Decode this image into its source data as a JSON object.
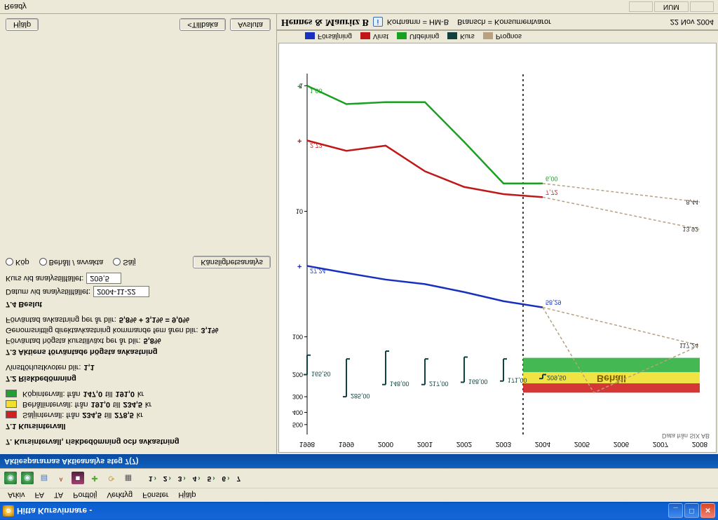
{
  "window": {
    "title": "Hitta Kursvinnare -",
    "min": "_",
    "max": "□",
    "close": "×"
  },
  "menubar": [
    "Arkiv",
    "FA",
    "TA",
    "Portfölj",
    "Verktyg",
    "Fönster",
    "Hjälp"
  ],
  "steps": [
    "1",
    "2",
    "3",
    "4",
    "5",
    "6",
    "7"
  ],
  "blue_header": "Aktiespararnas Aktieanalys steg 7(7)",
  "left": {
    "h7": "7. Kursintervall, riskbedömning och avkastning",
    "h71": "7.1 Kursintervall",
    "intervals": [
      {
        "color": "#d02020",
        "label_pre": "Säljintervall: från ",
        "v1": "234,5",
        "mid": " till ",
        "v2": "278,5",
        "unit": " kr"
      },
      {
        "color": "#f0e030",
        "label_pre": "Behållintervall: från ",
        "v1": "191,0",
        "mid": " till ",
        "v2": "234,5",
        "unit": " kr"
      },
      {
        "color": "#20a030",
        "label_pre": "Köpintervall: från ",
        "v1": "147,0",
        "mid": " till ",
        "v2": "191,0",
        "unit": " kr"
      }
    ],
    "h72": "7.2 Riskbedömning",
    "risk_line_pre": "Vinstförlustkvoten blir: ",
    "risk_val": "1,1",
    "h73": "7.3 Aktiens förväntade högsta avkastning",
    "line731_pre": "Förväntad högsta kurstillväxt per år blir: ",
    "line731_val": "5,8%",
    "line732_pre": "Genomsnittlig direktavkastning kommande fem åren blir: ",
    "line732_val": "3,1%",
    "line733_pre": "Förväntad avkastning per år blir: ",
    "line733_val": "5,8% + 3,1% = 9,0%",
    "h74": "7.4 Beslut",
    "date_label": "Datum vid analystillfället: ",
    "date_val": "2004-11-22",
    "price_label": "Kurs vid analystillfället: ",
    "price_val": "209,5",
    "radios": [
      "Köp",
      "Behåll / avvakta",
      "Sälj"
    ],
    "sens_btn": "Känslighetsanalys",
    "help_btn": "Hjälp",
    "back_btn": "<Tillbaka",
    "finish_btn": "Avsluta"
  },
  "chart": {
    "years": [
      "1998",
      "1999",
      "2000",
      "2001",
      "2002",
      "2003",
      "2004",
      "2005",
      "2006",
      "2007",
      "2008"
    ],
    "attribution": "Data från SIX AB",
    "title": "Hennes & Mauritz B",
    "kortnamn": "Kortnamn = HM-B",
    "bransch": "Bransch = Konsumentvaror",
    "date": "22 Nov 2004",
    "bands_label": "Behåll",
    "bands": {
      "sell_color": "#d02020",
      "hold_color": "#f0e030",
      "buy_color": "#30b040",
      "sell_top": 278.5,
      "sell_bot": 234.5,
      "hold_bot": 191.0,
      "buy_bot": 147.0
    },
    "series": {
      "green": {
        "color": "#18a020",
        "label_start": "1,00",
        "label_end": "6,00",
        "pts": [
          1.0,
          1.4,
          1.35,
          1.35,
          2.8,
          6.0,
          6.0
        ]
      },
      "red": {
        "color": "#c01818",
        "label_start": "2,73",
        "label_end": "7,72",
        "pts": [
          2.73,
          3.3,
          3.0,
          4.8,
          6.4,
          7.3,
          7.72
        ]
      },
      "blue": {
        "color": "#1830c0",
        "label_start": "27,24",
        "label_end": "58,29",
        "pts": [
          27.24,
          31,
          35,
          38,
          44,
          52,
          58.29
        ]
      }
    },
    "proj": {
      "color": "#b8a080",
      "upper_end": 117.24,
      "upper_label": "117,24",
      "mid_end": 13.92,
      "mid_label": "13,92",
      "low_end": 8.44,
      "low_label": "8,44"
    },
    "kurs_bars": {
      "color": "#104040",
      "labels": [
        "165,50",
        "285,00",
        "148,00",
        "217,00",
        "168,00",
        "171,00",
        "209,50"
      ],
      "bars": [
        {
          "x": 0,
          "hi": 200,
          "lo": 140,
          "lbl": "165,50"
        },
        {
          "x": 1,
          "hi": 300,
          "lo": 150,
          "lbl": "285,00"
        },
        {
          "x": 2,
          "hi": 240,
          "lo": 130,
          "lbl": "148,00"
        },
        {
          "x": 3,
          "hi": 240,
          "lo": 150,
          "lbl": "217,00"
        },
        {
          "x": 4,
          "hi": 230,
          "lo": 145,
          "lbl": "168,00"
        },
        {
          "x": 5,
          "hi": 225,
          "lo": 150,
          "lbl": "171,00"
        },
        {
          "x": 6,
          "hi": 215,
          "lo": 200,
          "lbl": "209,50"
        }
      ]
    },
    "y_ticks": [
      1,
      10,
      100,
      200,
      300,
      400,
      500
    ],
    "legend": [
      {
        "color": "#1830c0",
        "label": "Försäljning"
      },
      {
        "color": "#c01818",
        "label": "Vinst"
      },
      {
        "color": "#18a020",
        "label": "Utdelning"
      },
      {
        "color": "#104040",
        "label": "Kurs"
      },
      {
        "color": "#b8a080",
        "label": "Prognos"
      }
    ]
  },
  "status": {
    "left": "Ready",
    "num": "NUM"
  }
}
